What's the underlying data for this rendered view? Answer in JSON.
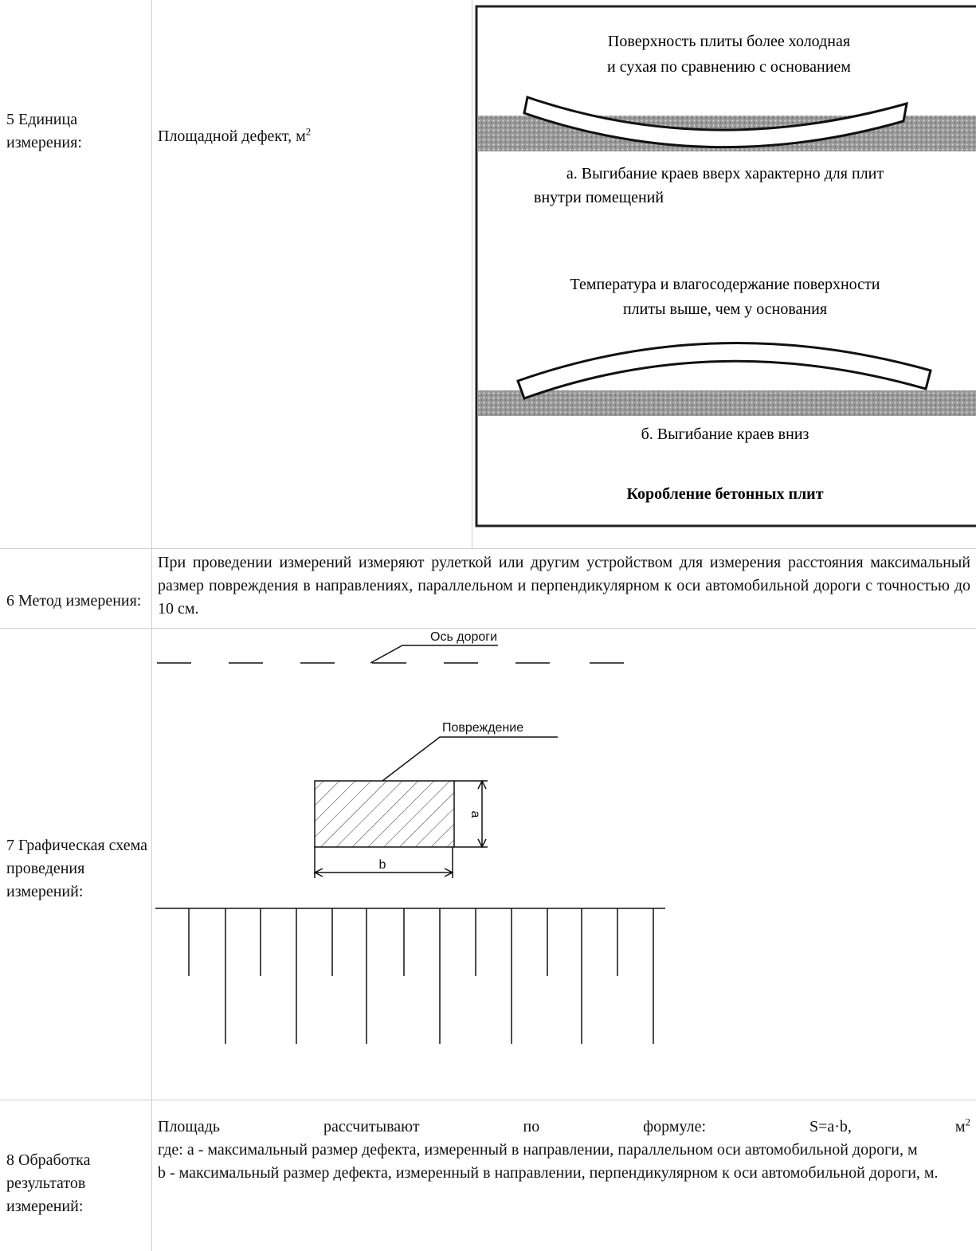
{
  "rows": [
    {
      "label": "5 Единица измерения:",
      "text": "Площадной дефект, м",
      "superscript": "2"
    },
    {
      "label": "6 Метод измерения:",
      "text": "При проведении измерений измеряют рулеткой или другим устройством для измерения расстояния максимальный размер повреждения в направлениях, параллельном и перпендикулярном к оси автомобильной дороги с точностью до 10 см."
    },
    {
      "label": "7 Графическая схема проведения измерений:"
    },
    {
      "label": "8 Обработка результатов измерений:",
      "formula": "Площадь рассчитывают по формуле: S=a·b, м",
      "superscript": "2",
      "lines": [
        "где: a - максимальный размер дефекта, измеренный в направлении, параллельном оси автомобильной дороги, м",
        "b - максимальный размер дефекта, измеренный в направлении, перпендикулярном к оси автомобильной дороги, м."
      ]
    }
  ],
  "figure": {
    "caption_a_top": [
      "Поверхность плиты более холодная",
      "и сухая по сравнению с основанием"
    ],
    "caption_a": [
      "а. Выгибание краев вверх  характерно для плит",
      "внутри помещений"
    ],
    "caption_b_top": [
      "Температура и влагосодержание поверхности",
      "плиты выше, чем у основания"
    ],
    "caption_b": "б. Выгибание краев вниз",
    "title": "Коробление бетонных плит"
  },
  "scheme": {
    "axis_label": "Ось дороги",
    "damage_label": "Повреждение",
    "dim_a": "a",
    "dim_b": "b"
  }
}
